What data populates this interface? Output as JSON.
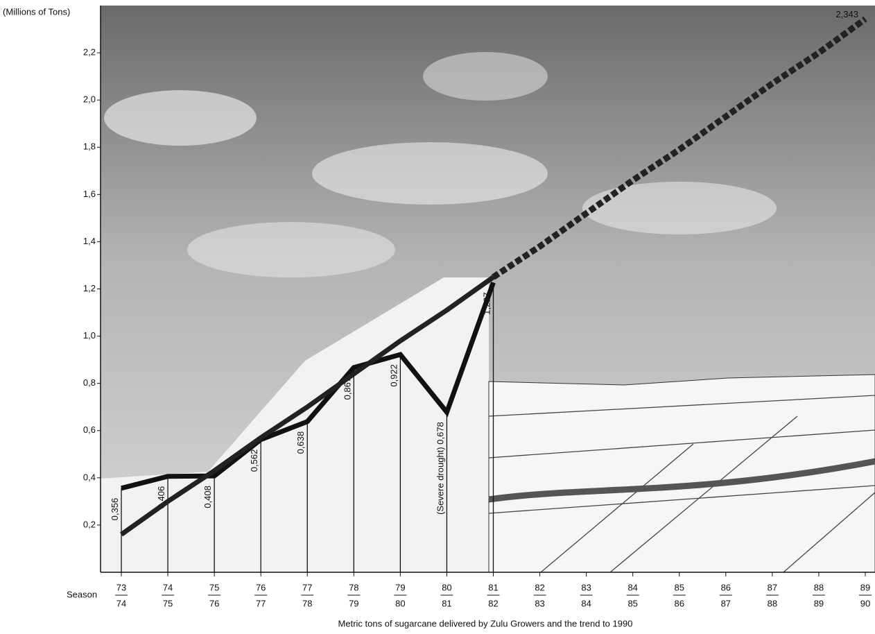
{
  "chart_data": {
    "type": "line",
    "title": "Metric tons of sugarcane delivered by Zulu Growers and the trend to 1990",
    "y_axis_label": "(Millions of Tons)",
    "x_axis_label": "Season",
    "categories": [
      [
        "73",
        "74"
      ],
      [
        "74",
        "75"
      ],
      [
        "75",
        "76"
      ],
      [
        "76",
        "77"
      ],
      [
        "77",
        "78"
      ],
      [
        "78",
        "79"
      ],
      [
        "79",
        "80"
      ],
      [
        "80",
        "81"
      ],
      [
        "81",
        "82"
      ],
      [
        "82",
        "83"
      ],
      [
        "83",
        "84"
      ],
      [
        "84",
        "85"
      ],
      [
        "85",
        "86"
      ],
      [
        "86",
        "87"
      ],
      [
        "87",
        "88"
      ],
      [
        "88",
        "89"
      ],
      [
        "89",
        "90"
      ]
    ],
    "series": [
      {
        "color": "#111111",
        "style": "solid",
        "drop_lines": true,
        "values": [
          0.356,
          0.406,
          0.408,
          0.562,
          0.638,
          0.867,
          0.922,
          0.678,
          1.227,
          null,
          null,
          null,
          null,
          null,
          null,
          null,
          null
        ],
        "value_labels": [
          "0,356",
          "0,406",
          "0,408",
          "0,562",
          "0,638",
          "0,867",
          "0,922",
          "0,678",
          "1,227",
          null,
          null,
          null,
          null,
          null,
          null,
          null,
          null
        ]
      },
      {
        "color": "#222222",
        "style": "solid",
        "values": [
          0.16,
          0.3,
          0.43,
          0.57,
          0.7,
          0.84,
          0.98,
          1.11,
          1.25,
          null,
          null,
          null,
          null,
          null,
          null,
          null,
          null
        ]
      },
      {
        "color": "#222222",
        "style": "dashed",
        "values": [
          null,
          null,
          null,
          null,
          null,
          null,
          null,
          null,
          1.25,
          1.38,
          1.52,
          1.66,
          1.79,
          1.93,
          2.07,
          2.2,
          2.343
        ],
        "value_labels": [
          null,
          null,
          null,
          null,
          null,
          null,
          null,
          null,
          null,
          null,
          null,
          null,
          null,
          null,
          null,
          null,
          "2,343"
        ]
      }
    ],
    "annotation": "(Severe drought)",
    "annotation_index": 7,
    "ylim": [
      0,
      2.4
    ],
    "yticks": [
      {
        "value": 0.2,
        "label": "0,2"
      },
      {
        "value": 0.4,
        "label": "0,4"
      },
      {
        "value": 0.6,
        "label": "0,6"
      },
      {
        "value": 0.8,
        "label": "0,8"
      },
      {
        "value": 1.0,
        "label": "1,0"
      },
      {
        "value": 1.2,
        "label": "1,2"
      },
      {
        "value": 1.4,
        "label": "1,4"
      },
      {
        "value": 1.6,
        "label": "1,6"
      },
      {
        "value": 1.8,
        "label": "1,8"
      },
      {
        "value": 2.0,
        "label": "2,0"
      },
      {
        "value": 2.2,
        "label": "2,2"
      }
    ]
  }
}
